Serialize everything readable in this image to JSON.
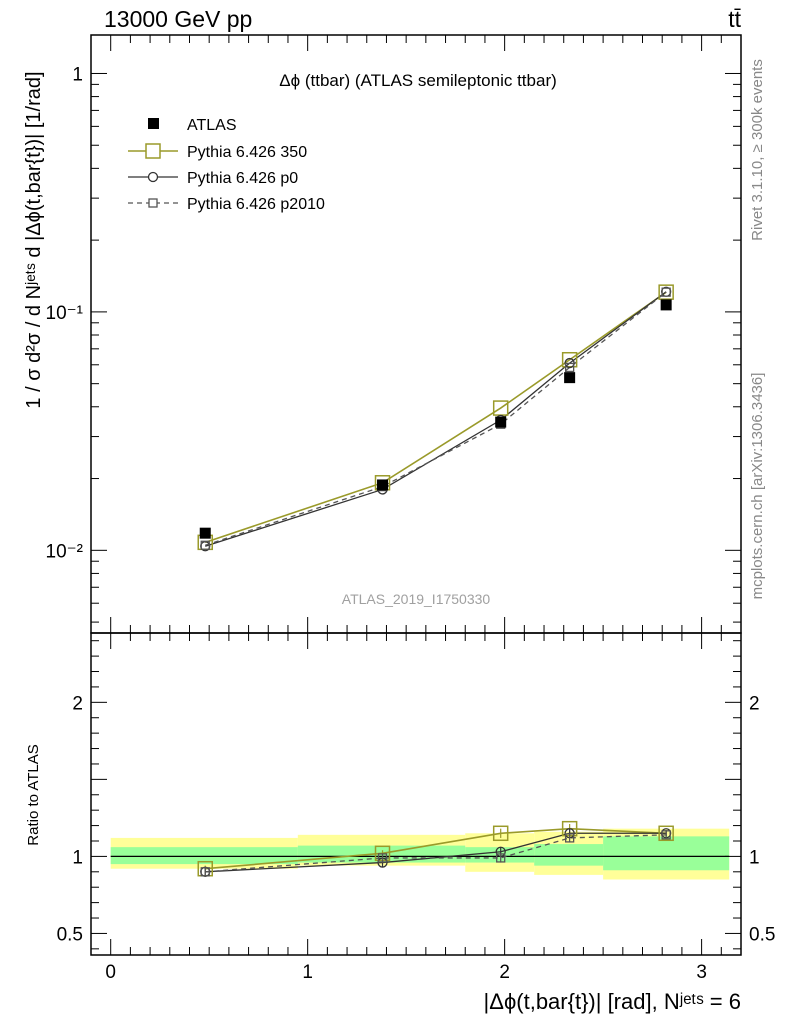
{
  "header": {
    "energy_label": "13000 GeV pp",
    "process_label": "tt̄"
  },
  "side_labels": {
    "rivet": "Rivet 3.1.10, ≥ 300k events",
    "mcplots": "mcplots.cern.ch [arXiv:1306.3436]"
  },
  "colors": {
    "atlas": "#000000",
    "pythia_350": "#9a9a2a",
    "pythia_p0": "#333333",
    "pythia_p2010": "#555555",
    "band_inner": "#99ff99",
    "band_outer": "#ffff99"
  },
  "chart_data": [
    {
      "type": "line",
      "panel": "main",
      "title": "Δϕ (ttbar) (ATLAS semileptonic ttbar)",
      "ylabel": "1 / σ d²σ / d Nʲᵉᵗˢ d |Δϕ(t,bar{t})| [1/rad]",
      "yscale": "log",
      "ylim": [
        0.0045,
        1.45
      ],
      "xlim": [
        -0.1,
        3.2
      ],
      "y_ticks": [
        {
          "value": 1,
          "label": "1"
        },
        {
          "value": 0.1,
          "label": "10⁻¹"
        },
        {
          "value": 0.01,
          "label": "10⁻²"
        }
      ],
      "watermark": "ATLAS_2019_I1750330",
      "legend_position": "top-left",
      "bins": [
        {
          "lo": 0.0,
          "hi": 0.95,
          "center": 0.48
        },
        {
          "lo": 0.95,
          "hi": 1.8,
          "center": 1.38
        },
        {
          "lo": 1.8,
          "hi": 2.15,
          "center": 1.98
        },
        {
          "lo": 2.15,
          "hi": 2.5,
          "center": 2.33
        },
        {
          "lo": 2.5,
          "hi": 3.14,
          "center": 2.82
        }
      ],
      "series": [
        {
          "name": "ATLAS",
          "key": "atlas",
          "marker": "filled-square",
          "line": "none",
          "values": [
            0.0118,
            0.0188,
            0.0345,
            0.053,
            0.107
          ]
        },
        {
          "name": "Pythia 6.426 350",
          "key": "pythia_350",
          "marker": "open-square",
          "line": "solid",
          "values": [
            0.0108,
            0.0192,
            0.0395,
            0.063,
            0.121
          ]
        },
        {
          "name": "Pythia 6.426 p0",
          "key": "pythia_p0",
          "marker": "open-circle",
          "line": "solid",
          "values": [
            0.0104,
            0.018,
            0.0352,
            0.061,
            0.1215
          ]
        },
        {
          "name": "Pythia 6.426 p2010",
          "key": "pythia_p2010",
          "marker": "small-open-square",
          "line": "dashed",
          "values": [
            0.0105,
            0.0185,
            0.0338,
            0.0585,
            0.121
          ]
        }
      ]
    },
    {
      "type": "line",
      "panel": "ratio",
      "ylabel": "Ratio to ATLAS",
      "xlabel": "|Δϕ(t,bar{t})| [rad], Nʲᵉᵗˢ = 6",
      "ylim": [
        0.36,
        2.45
      ],
      "xlim": [
        -0.1,
        3.2
      ],
      "y_ticks": [
        {
          "value": 2,
          "label": "2"
        },
        {
          "value": 1,
          "label": "1"
        },
        {
          "value": 0.5,
          "label": "0.5"
        }
      ],
      "x_ticks": [
        {
          "value": 0,
          "label": "0"
        },
        {
          "value": 1,
          "label": "1"
        },
        {
          "value": 2,
          "label": "2"
        },
        {
          "value": 3,
          "label": "3"
        }
      ],
      "bands": {
        "inner": [
          {
            "lo": 0.0,
            "hi": 0.95,
            "low": 0.95,
            "high": 1.06
          },
          {
            "lo": 0.95,
            "hi": 1.8,
            "low": 0.96,
            "high": 1.07
          },
          {
            "lo": 1.8,
            "hi": 2.15,
            "low": 0.96,
            "high": 1.06
          },
          {
            "lo": 2.15,
            "hi": 2.5,
            "low": 0.94,
            "high": 1.08
          },
          {
            "lo": 2.5,
            "hi": 3.14,
            "low": 0.91,
            "high": 1.13
          }
        ],
        "outer": [
          {
            "lo": 0.0,
            "hi": 0.95,
            "low": 0.92,
            "high": 1.12
          },
          {
            "lo": 0.95,
            "hi": 1.8,
            "low": 0.94,
            "high": 1.14
          },
          {
            "lo": 1.8,
            "hi": 2.15,
            "low": 0.9,
            "high": 1.15
          },
          {
            "lo": 2.15,
            "hi": 2.5,
            "low": 0.88,
            "high": 1.16
          },
          {
            "lo": 2.5,
            "hi": 3.14,
            "low": 0.85,
            "high": 1.18
          }
        ]
      },
      "series": [
        {
          "name": "Pythia 6.426 350",
          "key": "pythia_350",
          "marker": "open-square",
          "line": "solid",
          "values": [
            0.92,
            1.02,
            1.15,
            1.18,
            1.15
          ],
          "err": [
            0.02,
            0.02,
            0.03,
            0.03,
            0.02
          ]
        },
        {
          "name": "Pythia 6.426 p0",
          "key": "pythia_p0",
          "marker": "open-circle",
          "line": "solid",
          "values": [
            0.9,
            0.96,
            1.03,
            1.15,
            1.15
          ],
          "err": [
            0.03,
            0.03,
            0.03,
            0.03,
            0.02
          ]
        },
        {
          "name": "Pythia 6.426 p2010",
          "key": "pythia_p2010",
          "marker": "small-open-square",
          "line": "dashed",
          "values": [
            0.9,
            0.99,
            0.99,
            1.12,
            1.14
          ],
          "err": [
            0.03,
            0.03,
            0.03,
            0.03,
            0.02
          ]
        }
      ]
    }
  ]
}
